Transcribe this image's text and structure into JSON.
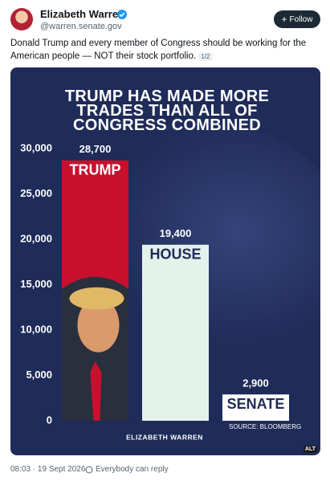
{
  "post": {
    "author": "Elizabeth Warren",
    "handle": "@warren.senate.gov",
    "follow": "Follow",
    "text": "Donald Trump and every member of Congress should be working for the American people — NOT their stock portfolio.",
    "thread_index": "1/2",
    "alt": "ALT",
    "timestamp": "08:03 · 19 Sept 2026",
    "reply_setting": "Everybody can reply"
  },
  "chart_data": {
    "type": "bar",
    "title": "TRUMP HAS MADE MORE TRADES THAN ALL OF CONGRESS COMBINED",
    "categories": [
      "TRUMP",
      "HOUSE",
      "SENATE"
    ],
    "values": [
      28700,
      19400,
      2900
    ],
    "value_labels": [
      "28,700",
      "19,400",
      "2,900"
    ],
    "colors": [
      "#c8102e",
      "#e4f2ec",
      "#ffffff"
    ],
    "ylim": [
      0,
      30000
    ],
    "yticks": [
      0,
      {
        "value": 5000,
        "label": "5,000"
      },
      {
        "value": 10000,
        "label": "10,000"
      },
      {
        "value": 15000,
        "label": "15,000"
      },
      {
        "value": 20000,
        "label": "20,000"
      },
      {
        "value": 25000,
        "label": "25,000"
      },
      {
        "value": 30000,
        "label": "30,000"
      }
    ],
    "source": "SOURCE: BLOOMBERG",
    "branding": "ELIZABETH WARREN"
  }
}
